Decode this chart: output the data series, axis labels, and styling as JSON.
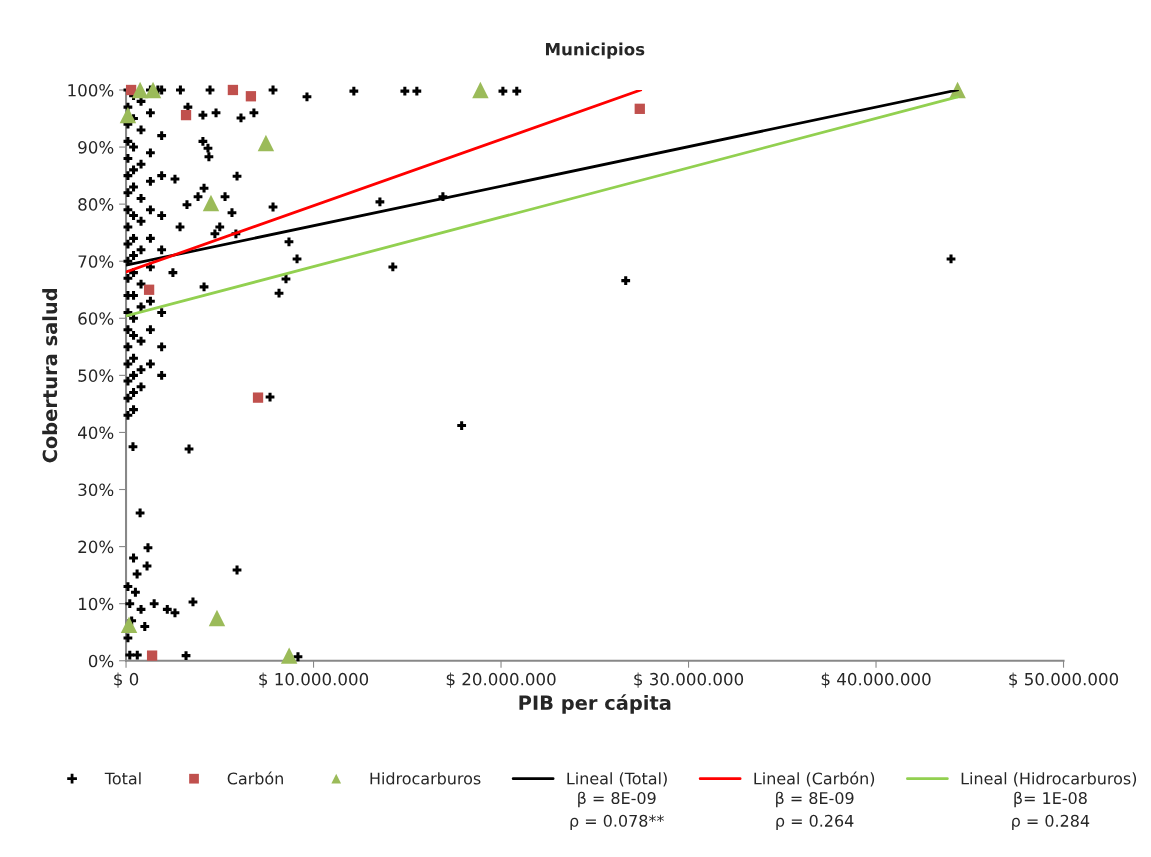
{
  "chart_data": {
    "type": "scatter",
    "title": "Municipios",
    "xlabel": "PIB per cápita",
    "ylabel": "Cobertura salud",
    "xlim": [
      0,
      50000000
    ],
    "xticks": [
      {
        "value": 0,
        "label": "$ 0"
      },
      {
        "value": 10000000,
        "label": "$ 10.000.000"
      },
      {
        "value": 20000000,
        "label": "$ 20.000.000"
      },
      {
        "value": 30000000,
        "label": "$ 30.000.000"
      },
      {
        "value": 40000000,
        "label": "$ 40.000.000"
      },
      {
        "value": 50000000,
        "label": "$ 50.000.000"
      }
    ],
    "ylim": [
      0,
      100
    ],
    "yticks": [
      {
        "value": 0,
        "label": "0%"
      },
      {
        "value": 10,
        "label": "10%"
      },
      {
        "value": 20,
        "label": "20%"
      },
      {
        "value": 30,
        "label": "30%"
      },
      {
        "value": 40,
        "label": "40%"
      },
      {
        "value": 50,
        "label": "50%"
      },
      {
        "value": 60,
        "label": "60%"
      },
      {
        "value": 70,
        "label": "70%"
      },
      {
        "value": 80,
        "label": "80%"
      },
      {
        "value": 90,
        "label": "90%"
      },
      {
        "value": 100,
        "label": "100%"
      }
    ],
    "grid": false,
    "legend": "bottom",
    "series": [
      {
        "name": "Total",
        "color": "#000000",
        "marker": "cross",
        "x": [
          4480000,
          7840000,
          9650000,
          12150000,
          14870000,
          15510000,
          20100000,
          20840000,
          3300000,
          4100000,
          4800000,
          6130000,
          6820000,
          4100000,
          4370000,
          4420000,
          5920000,
          4160000,
          5280000,
          5650000,
          7840000,
          13540000,
          16900000,
          5000000,
          4740000,
          5860000,
          8690000,
          9120000,
          14230000,
          8530000,
          8160000,
          4160000,
          2610000,
          3840000,
          3250000,
          2880000,
          2500000,
          44000000,
          26650000,
          17900000,
          7680000,
          3360000,
          370000,
          750000,
          1170000,
          5920000,
          3570000,
          2610000,
          3200000,
          9170000,
          1120000,
          590000,
          1700000,
          2900000,
          100000,
          100000,
          100000,
          100000,
          100000,
          100000,
          100000,
          100000,
          100000,
          100000,
          100000,
          100000,
          100000,
          100000,
          100000,
          100000,
          100000,
          100000,
          100000,
          100000,
          400000,
          400000,
          400000,
          400000,
          400000,
          400000,
          400000,
          400000,
          400000,
          400000,
          400000,
          400000,
          400000,
          400000,
          400000,
          400000,
          800000,
          800000,
          800000,
          800000,
          800000,
          800000,
          800000,
          800000,
          800000,
          800000,
          800000,
          1300000,
          1300000,
          1300000,
          1300000,
          1300000,
          1300000,
          1300000,
          1300000,
          1300000,
          1300000,
          1900000,
          1900000,
          1900000,
          1900000,
          1900000,
          1900000,
          1900000,
          1900000,
          100000,
          200000,
          300000,
          100000,
          200000,
          500000,
          800000,
          1000000,
          400000,
          600000,
          1500000,
          2200000
        ],
        "values": [
          100,
          100,
          98.8,
          99.8,
          99.8,
          99.8,
          99.8,
          99.8,
          97,
          95.6,
          96,
          95.1,
          96,
          91,
          89.8,
          88.3,
          84.9,
          82.8,
          81.3,
          78.5,
          79.5,
          80.4,
          81.3,
          76,
          74.8,
          74.8,
          73.4,
          70.4,
          69,
          66.9,
          64.4,
          65.5,
          84.4,
          81.3,
          79.9,
          76,
          68,
          70.4,
          66.6,
          41.2,
          46.2,
          37.1,
          37.5,
          25.9,
          19.8,
          15.9,
          10.3,
          8.4,
          0.9,
          0.7,
          16.6,
          15.2,
          100,
          100,
          100,
          97,
          94,
          91,
          88,
          85,
          82,
          79,
          76,
          73,
          70,
          67,
          64,
          61,
          58,
          55,
          52,
          49,
          46,
          43,
          99,
          95,
          90,
          86,
          83,
          78,
          74,
          71,
          68,
          64,
          60,
          57,
          53,
          50,
          47,
          44,
          98,
          93,
          87,
          81,
          77,
          72,
          66,
          62,
          56,
          51,
          48,
          100,
          96,
          89,
          84,
          79,
          74,
          69,
          63,
          58,
          52,
          100,
          92,
          85,
          78,
          72,
          61,
          55,
          50,
          13,
          10,
          7,
          4,
          1,
          12,
          9,
          6,
          18,
          1,
          10,
          9
        ]
      },
      {
        "name": "Carbón",
        "color": "#c0504d",
        "marker": "square",
        "x": [
          270000,
          5700000,
          6660000,
          3200000,
          27400000,
          1230000,
          7040000,
          1390000
        ],
        "values": [
          100,
          100,
          98.9,
          95.6,
          96.7,
          65,
          46.1,
          0.9
        ]
      },
      {
        "name": "Hidrocarburos",
        "color": "#9bbb59",
        "marker": "triangle",
        "x": [
          750000,
          1440000,
          100000,
          18900000,
          44350000,
          7460000,
          4530000,
          160000,
          4850000,
          8700000
        ],
        "values": [
          100,
          100,
          95.6,
          100,
          100,
          90.7,
          80.2,
          6.3,
          7.5,
          0.9
        ]
      },
      {
        "name": "Lineal (Total)",
        "type": "line",
        "color": "#000000",
        "marker": "none",
        "line_style": "solid",
        "x": [
          0,
          44350000
        ],
        "values": [
          69.3,
          100
        ]
      },
      {
        "name": "Lineal (Carbón)",
        "type": "line",
        "color": "#ff0000",
        "marker": "none",
        "line_style": "solid",
        "x": [
          0,
          27450000
        ],
        "values": [
          68.1,
          100
        ]
      },
      {
        "name": "Lineal (Hidrocarburos)",
        "type": "line",
        "color": "#92d050",
        "marker": "none",
        "line_style": "solid",
        "x": [
          0,
          44350000
        ],
        "values": [
          60.4,
          98.8
        ]
      }
    ],
    "annotations": [
      "β = 8E-09\nρ = 0.078**",
      "β = 8E-09\nρ = 0.264",
      "β= 1E-08\nρ = 0.284"
    ]
  }
}
